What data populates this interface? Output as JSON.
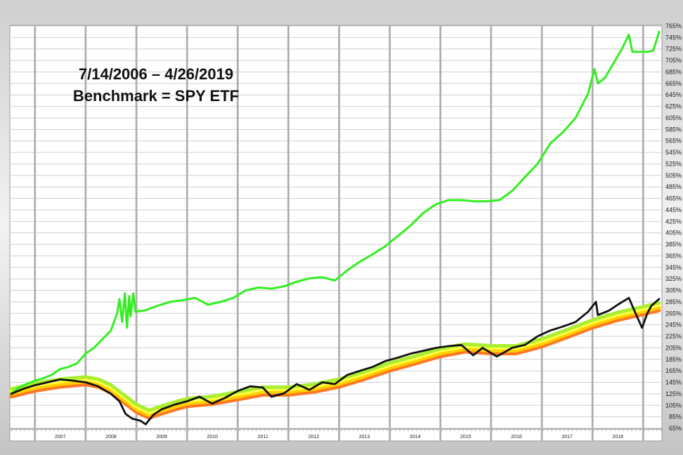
{
  "chart_data": {
    "type": "line",
    "title": "7/14/2006 – 4/26/2019",
    "subtitle": "Benchmark = SPY ETF",
    "xlabel": "",
    "ylabel": "",
    "x_range": [
      "2006-07-14",
      "2019-04-26"
    ],
    "ylim": [
      65,
      765
    ],
    "y_ticks": [
      765,
      745,
      725,
      705,
      685,
      665,
      645,
      625,
      605,
      585,
      565,
      545,
      525,
      505,
      485,
      465,
      445,
      425,
      405,
      385,
      365,
      345,
      325,
      305,
      285,
      265,
      245,
      225,
      205,
      185,
      165,
      145,
      125,
      105,
      85,
      65
    ],
    "y_tick_suffix": "%",
    "x_tick_labels": [
      "2007",
      "2008",
      "2009",
      "2010",
      "2011",
      "2012",
      "2013",
      "2014",
      "2015",
      "2016",
      "2017",
      "2018"
    ],
    "grid": true,
    "legend": "none",
    "series": [
      {
        "color": "#33ee22",
        "points": [
          [
            "2006-07-14",
            125
          ],
          [
            "2006-09-01",
            135
          ],
          [
            "2006-11-01",
            142
          ],
          [
            "2007-01-01",
            148
          ],
          [
            "2007-03-01",
            152
          ],
          [
            "2007-05-01",
            158
          ],
          [
            "2007-07-01",
            168
          ],
          [
            "2007-09-01",
            172
          ],
          [
            "2007-11-01",
            178
          ],
          [
            "2008-01-01",
            195
          ],
          [
            "2008-03-01",
            205
          ],
          [
            "2008-05-01",
            220
          ],
          [
            "2008-07-01",
            235
          ],
          [
            "2008-08-15",
            265
          ],
          [
            "2008-09-01",
            290
          ],
          [
            "2008-09-20",
            250
          ],
          [
            "2008-10-10",
            300
          ],
          [
            "2008-10-25",
            240
          ],
          [
            "2008-11-10",
            295
          ],
          [
            "2008-11-20",
            260
          ],
          [
            "2008-12-10",
            300
          ],
          [
            "2008-12-25",
            268
          ],
          [
            "2009-03-01",
            270
          ],
          [
            "2009-06-01",
            278
          ],
          [
            "2009-09-01",
            285
          ],
          [
            "2009-12-01",
            288
          ],
          [
            "2010-03-01",
            292
          ],
          [
            "2010-06-01",
            280
          ],
          [
            "2010-09-01",
            285
          ],
          [
            "2010-12-01",
            292
          ],
          [
            "2011-03-01",
            305
          ],
          [
            "2011-06-01",
            310
          ],
          [
            "2011-09-01",
            308
          ],
          [
            "2011-12-01",
            312
          ],
          [
            "2012-03-01",
            320
          ],
          [
            "2012-06-01",
            326
          ],
          [
            "2012-09-01",
            328
          ],
          [
            "2012-12-01",
            322
          ],
          [
            "2013-03-01",
            340
          ],
          [
            "2013-06-01",
            355
          ],
          [
            "2013-09-01",
            368
          ],
          [
            "2013-12-01",
            382
          ],
          [
            "2014-03-01",
            400
          ],
          [
            "2014-06-01",
            418
          ],
          [
            "2014-09-01",
            440
          ],
          [
            "2014-12-01",
            455
          ],
          [
            "2015-03-01",
            462
          ],
          [
            "2015-06-01",
            462
          ],
          [
            "2015-09-01",
            460
          ],
          [
            "2015-12-01",
            460
          ],
          [
            "2016-03-01",
            462
          ],
          [
            "2016-06-01",
            478
          ],
          [
            "2016-09-01",
            502
          ],
          [
            "2016-12-01",
            525
          ],
          [
            "2017-03-01",
            560
          ],
          [
            "2017-06-01",
            580
          ],
          [
            "2017-09-01",
            605
          ],
          [
            "2017-12-01",
            648
          ],
          [
            "2018-01-15",
            690
          ],
          [
            "2018-02-10",
            665
          ],
          [
            "2018-04-01",
            675
          ],
          [
            "2018-06-01",
            700
          ],
          [
            "2018-08-01",
            725
          ],
          [
            "2018-09-20",
            750
          ],
          [
            "2018-10-15",
            720
          ],
          [
            "2018-12-01",
            720
          ],
          [
            "2019-02-01",
            720
          ],
          [
            "2019-03-15",
            722
          ],
          [
            "2019-04-26",
            755
          ]
        ]
      },
      {
        "color": "#111111",
        "points": [
          [
            "2006-07-14",
            125
          ],
          [
            "2006-10-01",
            133
          ],
          [
            "2007-01-01",
            140
          ],
          [
            "2007-04-01",
            145
          ],
          [
            "2007-07-01",
            150
          ],
          [
            "2007-10-01",
            148
          ],
          [
            "2008-01-01",
            145
          ],
          [
            "2008-04-01",
            138
          ],
          [
            "2008-07-01",
            125
          ],
          [
            "2008-09-01",
            112
          ],
          [
            "2008-10-15",
            90
          ],
          [
            "2008-12-01",
            82
          ],
          [
            "2009-02-01",
            78
          ],
          [
            "2009-03-09",
            72
          ],
          [
            "2009-05-01",
            88
          ],
          [
            "2009-07-01",
            98
          ],
          [
            "2009-10-01",
            106
          ],
          [
            "2010-01-01",
            112
          ],
          [
            "2010-04-01",
            120
          ],
          [
            "2010-07-01",
            108
          ],
          [
            "2010-10-01",
            118
          ],
          [
            "2011-01-01",
            130
          ],
          [
            "2011-04-01",
            138
          ],
          [
            "2011-07-01",
            136
          ],
          [
            "2011-09-01",
            120
          ],
          [
            "2011-12-01",
            126
          ],
          [
            "2012-03-01",
            142
          ],
          [
            "2012-06-01",
            132
          ],
          [
            "2012-09-01",
            145
          ],
          [
            "2012-12-01",
            142
          ],
          [
            "2013-03-01",
            158
          ],
          [
            "2013-06-01",
            165
          ],
          [
            "2013-09-01",
            172
          ],
          [
            "2013-12-01",
            182
          ],
          [
            "2014-03-01",
            188
          ],
          [
            "2014-06-01",
            195
          ],
          [
            "2014-09-01",
            200
          ],
          [
            "2014-12-01",
            205
          ],
          [
            "2015-03-01",
            208
          ],
          [
            "2015-06-01",
            210
          ],
          [
            "2015-08-25",
            192
          ],
          [
            "2015-11-01",
            205
          ],
          [
            "2016-02-11",
            190
          ],
          [
            "2016-06-01",
            205
          ],
          [
            "2016-09-01",
            210
          ],
          [
            "2016-12-01",
            225
          ],
          [
            "2017-03-01",
            235
          ],
          [
            "2017-06-01",
            242
          ],
          [
            "2017-09-01",
            250
          ],
          [
            "2017-12-01",
            268
          ],
          [
            "2018-01-26",
            285
          ],
          [
            "2018-02-09",
            262
          ],
          [
            "2018-05-01",
            270
          ],
          [
            "2018-07-01",
            280
          ],
          [
            "2018-09-20",
            292
          ],
          [
            "2018-10-29",
            270
          ],
          [
            "2018-12-24",
            240
          ],
          [
            "2019-01-31",
            265
          ],
          [
            "2019-03-01",
            278
          ],
          [
            "2019-04-26",
            290
          ]
        ]
      }
    ],
    "band": {
      "colors": [
        "#ff7722",
        "#ffd000",
        "#ffff44",
        "#aaee33"
      ],
      "points": [
        [
          "2006-07-14",
          125
        ],
        [
          "2007-01-01",
          135
        ],
        [
          "2007-07-01",
          142
        ],
        [
          "2008-01-01",
          146
        ],
        [
          "2008-04-01",
          142
        ],
        [
          "2008-07-01",
          132
        ],
        [
          "2008-10-01",
          115
        ],
        [
          "2009-01-01",
          98
        ],
        [
          "2009-04-01",
          88
        ],
        [
          "2009-07-01",
          95
        ],
        [
          "2009-10-01",
          102
        ],
        [
          "2010-01-01",
          108
        ],
        [
          "2010-07-01",
          112
        ],
        [
          "2011-01-01",
          120
        ],
        [
          "2011-07-01",
          128
        ],
        [
          "2012-01-01",
          128
        ],
        [
          "2012-07-01",
          133
        ],
        [
          "2013-01-01",
          142
        ],
        [
          "2013-07-01",
          155
        ],
        [
          "2014-01-01",
          170
        ],
        [
          "2014-07-01",
          182
        ],
        [
          "2015-01-01",
          195
        ],
        [
          "2015-07-01",
          203
        ],
        [
          "2016-01-01",
          200
        ],
        [
          "2016-07-01",
          200
        ],
        [
          "2017-01-01",
          212
        ],
        [
          "2017-07-01",
          228
        ],
        [
          "2018-01-01",
          245
        ],
        [
          "2018-07-01",
          258
        ],
        [
          "2019-01-01",
          268
        ],
        [
          "2019-04-26",
          275
        ]
      ]
    }
  }
}
